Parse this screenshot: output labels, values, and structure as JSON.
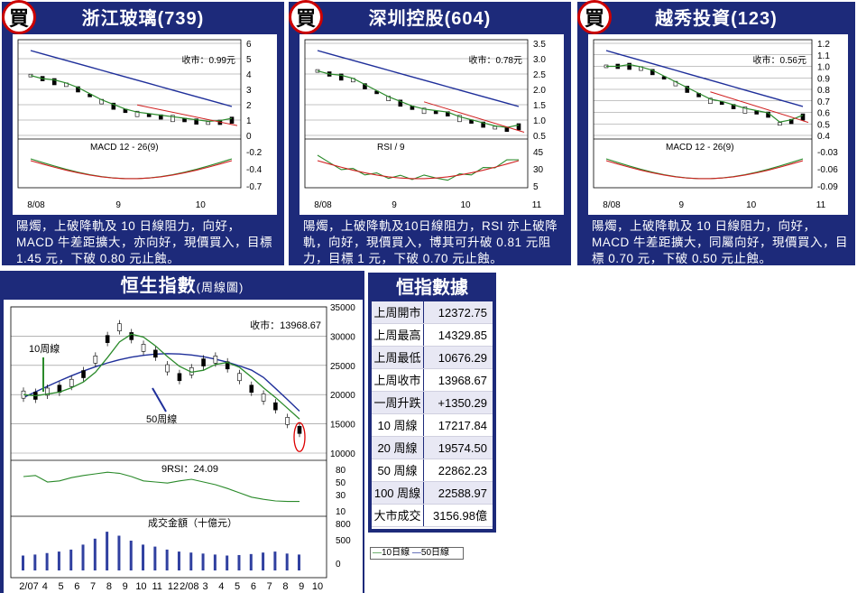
{
  "stocks": [
    {
      "title": "浙江玻璃(739)",
      "badge": "買",
      "close": "收市：0.99元",
      "indicator": "MACD 12 - 26(9)",
      "yticks": [
        "6",
        "5",
        "4",
        "3",
        "2",
        "1",
        "0"
      ],
      "ind_ticks": [
        "-0.2",
        "-0.4",
        "-0.7"
      ],
      "xticks": [
        "8/08",
        "9",
        "10"
      ],
      "desc": "陽燭，上破降軌及 10 日線阻力，向好，MACD 牛差距擴大，亦向好，現價買入，目標 1.45 元，下破 0.80 元止蝕。"
    },
    {
      "title": "深圳控股(604)",
      "badge": "買",
      "close": "收市：0.78元",
      "indicator": "RSI / 9",
      "yticks": [
        "3.5",
        "3.0",
        "2.5",
        "2.0",
        "1.5",
        "1.0",
        "0.5"
      ],
      "ind_ticks": [
        "45",
        "30",
        "5"
      ],
      "xticks": [
        "8/08",
        "9",
        "10",
        "11"
      ],
      "desc": "陽燭，上破降軌及10日線阻力，RSI 亦上破降軌，向好，現價買入，博其可升破 0.81 元阻力，目標 1 元，下破 0.70 元止蝕。"
    },
    {
      "title": "越秀投資(123)",
      "badge": "買",
      "close": "收市：0.56元",
      "indicator": "MACD 12 - 26(9)",
      "yticks": [
        "1.2",
        "1.1",
        "1.0",
        "0.9",
        "0.8",
        "0.7",
        "0.6",
        "0.5",
        "0.4"
      ],
      "ind_ticks": [
        "-0.03",
        "-0.06",
        "-0.09"
      ],
      "xticks": [
        "8/08",
        "9",
        "10",
        "11"
      ],
      "desc": "陽燭，上破降軌及 10 日線阻力，向好，MACD 牛差距擴大，同屬向好，現價買入，目標 0.70 元，下破 0.50 元止蝕。"
    }
  ],
  "hsi": {
    "title": "恒生指數",
    "subtitle": "(周線圖)",
    "close": "收市：13968.67",
    "label_10w": "10周線",
    "label_50w": "50周線",
    "rsi_label": "9RSI：24.09",
    "vol_label": "成交金額（十億元）",
    "yticks": [
      "35000",
      "30000",
      "25000",
      "20000",
      "15000",
      "10000"
    ],
    "rsi_ticks": [
      "80",
      "50",
      "30",
      "10"
    ],
    "vol_ticks": [
      "800",
      "500",
      "0"
    ],
    "xticks": [
      "2/07",
      "4",
      "5",
      "6",
      "7",
      "8",
      "9",
      "10",
      "11",
      "12",
      "2/08",
      "3",
      "4",
      "5",
      "6",
      "7",
      "8",
      "9",
      "10"
    ]
  },
  "table": {
    "title": "恒指數據",
    "rows": [
      {
        "k": "上周開市",
        "v": "12372.75"
      },
      {
        "k": "上周最高",
        "v": "14329.85"
      },
      {
        "k": "上周最低",
        "v": "10676.29"
      },
      {
        "k": "上周收市",
        "v": "13968.67"
      },
      {
        "k": "一周升跌",
        "v": "+1350.29"
      },
      {
        "k": "10 周線",
        "v": "17217.84"
      },
      {
        "k": "20 周線",
        "v": "19574.50"
      },
      {
        "k": "50 周線",
        "v": "22862.23"
      },
      {
        "k": "100 周線",
        "v": "22588.97"
      },
      {
        "k": "大市成交",
        "v": "3156.98億"
      }
    ]
  },
  "legend": {
    "ma10": "10日線",
    "ma50": "50日線"
  },
  "colors": {
    "navy": "#1d2a7a",
    "ma10": "#2a8a2a",
    "ma50": "#1f2f9a",
    "signal": "#d02020"
  },
  "chart_data": [
    {
      "type": "candlestick",
      "title": "浙江玻璃(739)",
      "close": 0.99,
      "ylim": [
        0,
        6
      ],
      "x_labels": [
        "8/08",
        "9",
        "10"
      ],
      "series": [
        {
          "name": "price",
          "values": [
            3.9,
            3.7,
            3.5,
            3.3,
            3.0,
            2.6,
            2.2,
            1.9,
            1.6,
            1.4,
            1.3,
            1.2,
            1.1,
            1.0,
            0.9,
            0.8,
            0.85,
            0.99
          ]
        }
      ]
    },
    {
      "type": "candlestick",
      "title": "深圳控股(604)",
      "close": 0.78,
      "ylim": [
        0.5,
        3.5
      ],
      "x_labels": [
        "8/08",
        "9",
        "10",
        "11"
      ],
      "series": [
        {
          "name": "price",
          "values": [
            2.6,
            2.5,
            2.4,
            2.3,
            2.1,
            1.9,
            1.7,
            1.55,
            1.4,
            1.3,
            1.25,
            1.2,
            1.05,
            0.95,
            0.85,
            0.75,
            0.7,
            0.78
          ]
        }
      ]
    },
    {
      "type": "candlestick",
      "title": "越秀投資(123)",
      "close": 0.56,
      "ylim": [
        0.4,
        1.2
      ],
      "x_labels": [
        "8/08",
        "9",
        "10",
        "11"
      ],
      "series": [
        {
          "name": "price",
          "values": [
            1.0,
            1.0,
            1.0,
            0.98,
            0.95,
            0.9,
            0.85,
            0.8,
            0.75,
            0.7,
            0.68,
            0.65,
            0.62,
            0.6,
            0.58,
            0.5,
            0.52,
            0.56
          ]
        }
      ]
    },
    {
      "type": "candlestick",
      "title": "恒生指數",
      "close": 13968.67,
      "ylim": [
        10000,
        35000
      ],
      "x_labels": [
        "2/07",
        "4",
        "5",
        "6",
        "7",
        "8",
        "9",
        "10",
        "11",
        "12",
        "2/08",
        "3",
        "4",
        "5",
        "6",
        "7",
        "8",
        "9",
        "10"
      ],
      "series": [
        {
          "name": "weekly",
          "values": [
            20000,
            19800,
            20500,
            21000,
            22000,
            23500,
            26000,
            29500,
            31500,
            30000,
            28000,
            27000,
            24500,
            23000,
            24000,
            25500,
            26000,
            25000,
            23000,
            21000,
            19500,
            18000,
            15500,
            13968.67
          ]
        }
      ]
    }
  ]
}
